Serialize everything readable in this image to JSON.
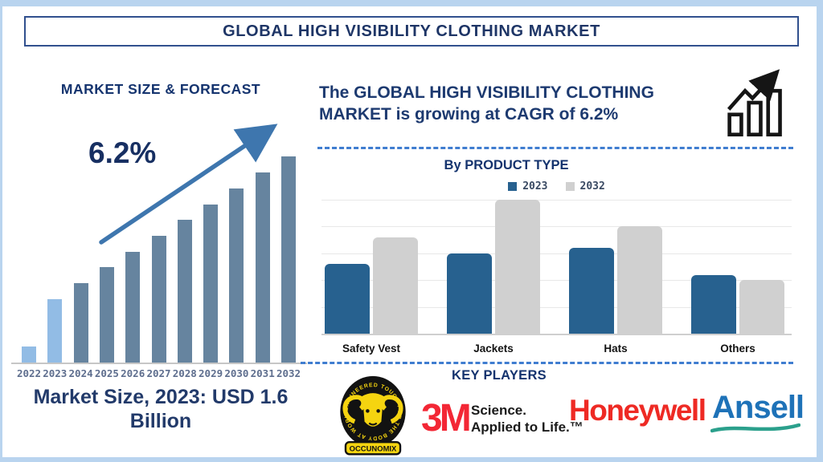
{
  "header": {
    "title": "GLOBAL HIGH VISIBILITY CLOTHING MARKET"
  },
  "left_panel": {
    "heading": "MARKET SIZE & FORECAST",
    "cagr_label": "6.2%",
    "market_size_text": "Market Size, 2023: USD 1.6 Billion"
  },
  "right_panel": {
    "headline": "The GLOBAL HIGH VISIBILITY CLOTHING MARKET is growing at CAGR of 6.2%",
    "growth_icon": "bar-chart-rising-arrow-icon"
  },
  "key_players": {
    "heading": "KEY PLAYERS",
    "players": [
      {
        "name": "OccuNomix",
        "ring_text": "ENGINEERED TOUGH FOR THE BODY AT WORK",
        "banner_text": "OCCUNOMIX"
      },
      {
        "name": "3M",
        "wordmark": "3M",
        "tagline_line1": "Science.",
        "tagline_line2": "Applied to Life.™"
      },
      {
        "name": "Honeywell",
        "wordmark": "Honeywell"
      },
      {
        "name": "Ansell",
        "wordmark": "Ansell"
      }
    ]
  },
  "colors": {
    "navy_text": "#1e3566",
    "frame_blue": "#b9d4ef",
    "forecast_bar": "#66849f",
    "forecast_bar_highlight": "#92bce5",
    "arrow_blue": "#3e76ae",
    "product_bar_2023": "#27618f",
    "product_bar_2032": "#d0d0d0",
    "dashed_line": "#3f7dd0",
    "year_label": "#5e6e8e",
    "logo_3m_red": "#f32735",
    "logo_honeywell_red": "#ee2a24",
    "logo_ansell_blue": "#1e72b8",
    "logo_ansell_teal": "#2ba08c",
    "occunomix_yellow": "#f5d410",
    "occunomix_black": "#121212"
  },
  "chart_data": [
    {
      "type": "bar",
      "title": "MARKET SIZE & FORECAST",
      "categories": [
        "2022",
        "2023",
        "2024",
        "2025",
        "2026",
        "2027",
        "2028",
        "2029",
        "2030",
        "2031",
        "2032"
      ],
      "values": [
        1,
        4,
        5,
        6,
        7,
        8,
        9,
        10,
        11,
        12,
        13
      ],
      "value_scale": "relative height units (no y-axis shown)",
      "annotation": "6.2%",
      "highlight_categories": [
        "2022",
        "2023"
      ],
      "xlabel": "",
      "ylabel": "",
      "grid": false,
      "legend": "none"
    },
    {
      "type": "bar",
      "subtype": "grouped",
      "title": "By PRODUCT TYPE",
      "categories": [
        "Safety Vest",
        "Jackets",
        "Hats",
        "Others"
      ],
      "series": [
        {
          "name": "2023",
          "values": [
            2.6,
            3.0,
            3.2,
            2.2
          ]
        },
        {
          "name": "2032",
          "values": [
            3.6,
            5.0,
            4.0,
            2.0
          ]
        }
      ],
      "ylim": [
        0,
        5
      ],
      "gridline_interval": 1,
      "value_scale": "relative gridline units (no y-axis labels shown)",
      "legend_position": "top-center",
      "grid": true
    }
  ]
}
